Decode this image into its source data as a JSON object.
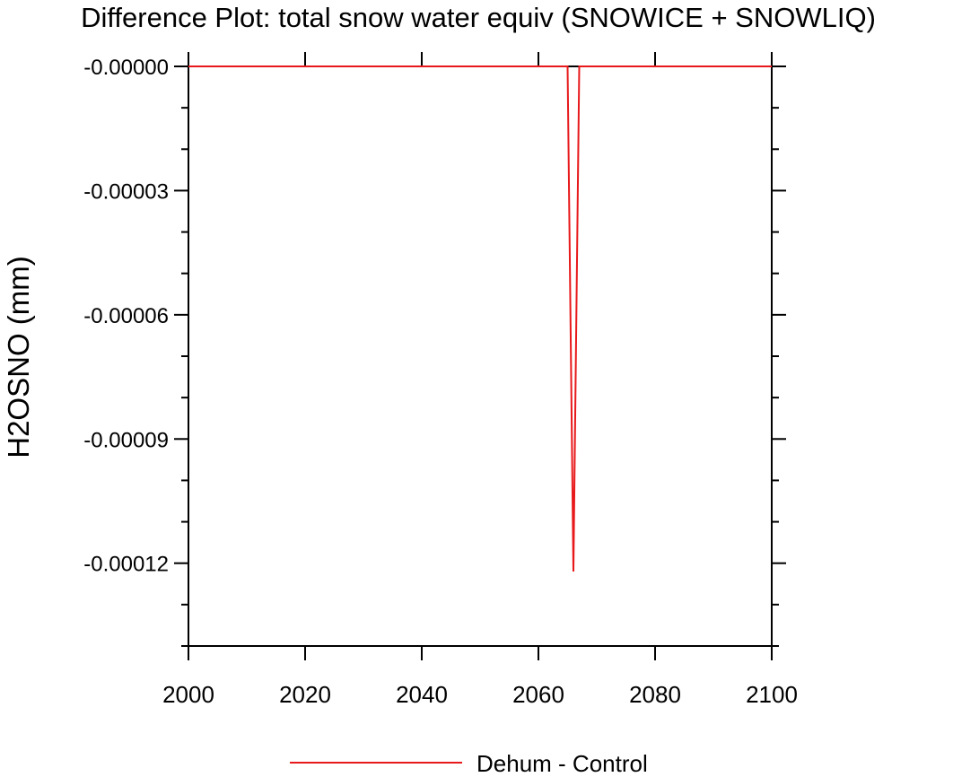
{
  "chart_data": {
    "type": "line",
    "title": "Difference Plot: total snow water equiv (SNOWICE + SNOWLIQ)",
    "xlabel": "",
    "ylabel": "H2OSNO  (mm)",
    "xlim": [
      2000,
      2100
    ],
    "ylim": [
      -0.00014,
      0.0
    ],
    "x_ticks": [
      2000,
      2020,
      2040,
      2060,
      2080,
      2100
    ],
    "x_tick_labels": [
      "2000",
      "2020",
      "2040",
      "2060",
      "2080",
      "2100"
    ],
    "y_ticks": [
      0.0,
      -3e-05,
      -6e-05,
      -9e-05,
      -0.00012
    ],
    "y_tick_labels": [
      "-0.00000",
      "-0.00003",
      "-0.00006",
      "-0.00009",
      "-0.00012"
    ],
    "grid": false,
    "legend_position": "bottom",
    "series": [
      {
        "name": "Dehum - Control",
        "color": "#e8191b",
        "x": [
          2000,
          2064,
          2065,
          2066,
          2067,
          2068,
          2100
        ],
        "values": [
          0.0,
          0.0,
          0.0,
          -0.000122,
          0.0,
          0.0,
          0.0
        ]
      }
    ]
  }
}
